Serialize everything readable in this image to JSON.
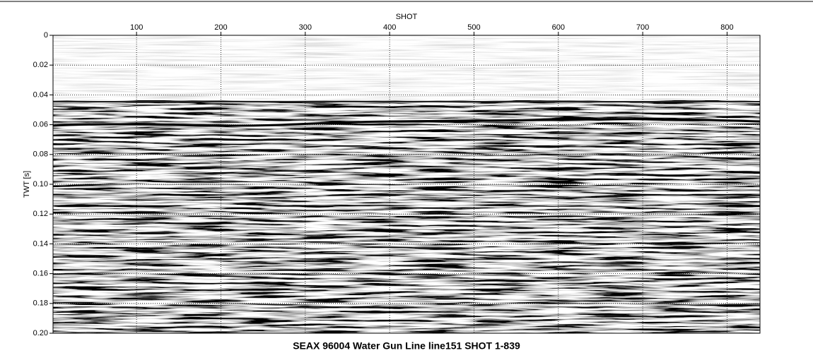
{
  "chart_data": {
    "type": "seismic",
    "title": "SEAX 96004 Water Gun Line line151 SHOT 1-839",
    "x_label": "SHOT",
    "y_label": "TWT [s]",
    "xlim": [
      1,
      839
    ],
    "xticks": [
      100,
      200,
      300,
      400,
      500,
      600,
      700,
      800
    ],
    "ylim": [
      0,
      0.2
    ],
    "yticks": [
      0,
      0.02,
      0.04,
      0.06,
      0.08,
      {
        "value": 0.1,
        "label": "0.10"
      },
      0.12,
      0.14,
      0.16,
      0.18,
      {
        "value": 0.2,
        "label": "0.20"
      }
    ],
    "y_inverted": true,
    "x_axis_position": "top",
    "grid": true
  }
}
